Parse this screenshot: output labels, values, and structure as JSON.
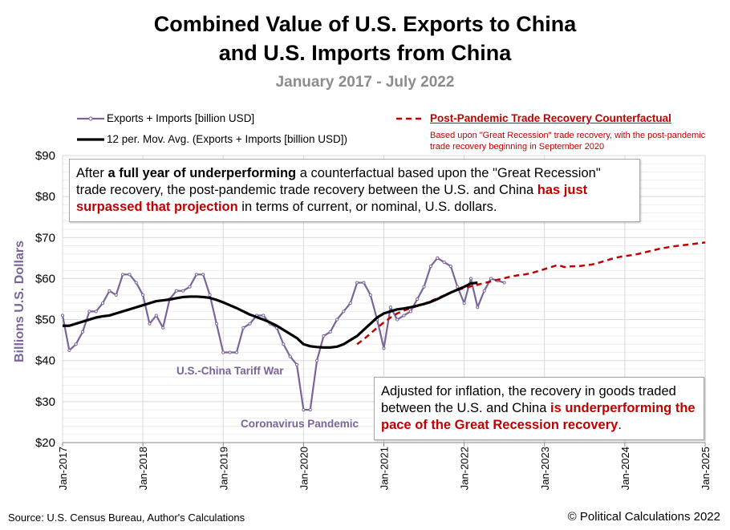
{
  "header": {
    "title_line1": "Combined Value of U.S. Exports to China",
    "title_line2": "and U.S. Imports from China",
    "subtitle": "January 2017 - July 2022"
  },
  "legend": {
    "series1": "Exports + Imports [billion USD]",
    "series2": "12 per. Mov. Avg. (Exports + Imports [billion USD])",
    "counterfactual_title": "Post-Pandemic Trade Recovery Counterfactual",
    "counterfactual_note": "Based upon \"Great Recession\" trade recovery, with the post-pandemic trade recovery beginning in September  2020"
  },
  "annotations": {
    "top_a": "After ",
    "top_b": "a full year of underperforming",
    "top_c": " a counterfactual based upon the \"Great Recession\" trade recovery, the post-pandemic trade recovery between the U.S. and China ",
    "top_d": "has just surpassed that projection",
    "top_e": " in terms of current, or nominal, U.S. dollars.",
    "bottom_a": "Adjusted for inflation, the recovery in goods traded between the U.S. and China ",
    "bottom_b": "is underperforming the pace of the Great Recession recovery",
    "bottom_c": ".",
    "tariff_war": "U.S.-China Tariff War",
    "pandemic": "Coronavirus Pandemic"
  },
  "footer": {
    "source": "Source: U.S. Census Bureau, Author's Calculations",
    "copyright": "© Political Calculations 2022"
  },
  "colors": {
    "exports_imports": "#7a649a",
    "moving_avg": "#000000",
    "counterfactual": "#c00000",
    "grid": "#d9d9d9"
  },
  "chart_data": {
    "type": "line",
    "title": "Combined Value of U.S. Exports to China and U.S. Imports from China",
    "subtitle": "January 2017 - July 2022",
    "xlabel": "",
    "ylabel": "Billions U.S. Dollars",
    "x_unit": "months since Jan-2017",
    "xlim": [
      0,
      96
    ],
    "ylim": [
      20,
      90
    ],
    "y_ticks": [
      20,
      30,
      40,
      50,
      60,
      70,
      80,
      90
    ],
    "y_tick_labels": [
      "$20",
      "$30",
      "$40",
      "$50",
      "$60",
      "$70",
      "$80",
      "$90"
    ],
    "x_ticks": [
      0,
      12,
      24,
      36,
      48,
      60,
      72,
      84,
      96
    ],
    "x_tick_labels": [
      "Jan-2017",
      "Jan-2018",
      "Jan-2019",
      "Jan-2020",
      "Jan-2021",
      "Jan-2022",
      "Jan-2023",
      "Jan-2024",
      "Jan-2025"
    ],
    "grid": true,
    "series": [
      {
        "name": "Exports + Imports [billion USD]",
        "color": "#7a649a",
        "values": [
          51,
          42.5,
          44,
          47,
          52,
          52,
          54,
          57,
          56,
          61,
          61,
          59,
          56,
          49,
          51,
          48,
          55,
          57,
          57,
          58,
          61,
          61,
          56,
          49,
          42,
          42,
          42,
          48,
          49,
          51,
          51,
          49,
          48,
          44,
          41,
          39,
          28,
          28,
          40,
          46,
          47,
          50,
          52,
          54,
          59,
          59,
          56,
          50,
          43,
          53,
          50,
          51,
          52,
          55,
          58,
          63,
          65,
          64,
          63,
          58,
          54,
          60,
          53,
          57,
          60,
          59.5,
          59
        ]
      },
      {
        "name": "12 per. Mov. Avg. (Exports + Imports [billion USD])",
        "color": "#000000",
        "start_x": 0,
        "values": [
          48.5,
          48.5,
          49,
          49.5,
          50,
          50.5,
          50.8,
          51,
          51.5,
          52,
          52.5,
          53,
          53.5,
          54,
          54.5,
          54.7,
          54.9,
          55.2,
          55.5,
          55.6,
          55.6,
          55.5,
          55.3,
          54.8,
          54.2,
          53.5,
          52.8,
          52,
          51.2,
          50.6,
          50,
          49.3,
          48.5,
          47.5,
          46.5,
          45.5,
          44,
          43.5,
          43.3,
          43.2,
          43.2,
          43.4,
          44,
          45,
          46,
          47.5,
          49,
          50.5,
          51.5,
          52,
          52.5,
          52.7,
          53,
          53.4,
          53.8,
          54.3,
          55,
          55.8,
          56.6,
          57.3,
          58,
          58.8,
          59
        ]
      },
      {
        "name": "Post-Pandemic Trade Recovery Counterfactual",
        "color": "#c00000",
        "style": "dashed",
        "start_x": 44,
        "values": [
          44,
          45.2,
          46.6,
          48,
          49.3,
          50.5,
          51.5,
          52.2,
          52.8,
          53.3,
          53.9,
          54.5,
          55.2,
          55.9,
          56.6,
          57.2,
          57.7,
          58.1,
          58.5,
          58.9,
          59.3,
          59.7,
          60.1,
          60.5,
          60.8,
          61,
          61.3,
          61.8,
          62.3,
          62.8,
          63.3,
          62.8,
          63,
          63,
          63.2,
          63.4,
          63.8,
          64.3,
          64.8,
          65.2,
          65.5,
          65.7,
          66,
          66.4,
          66.8,
          67.2,
          67.5,
          67.8,
          68,
          68.2,
          68.4,
          68.6,
          68.8
        ]
      }
    ]
  }
}
